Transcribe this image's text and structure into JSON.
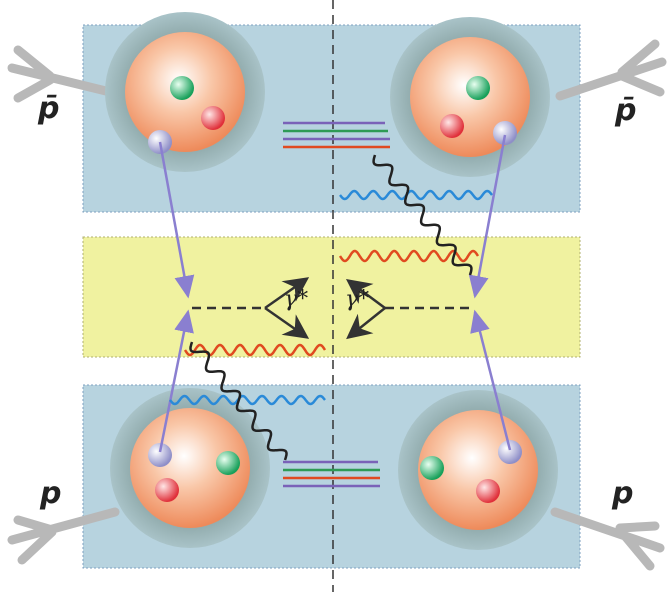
{
  "labels": {
    "top_left": "p̄",
    "top_right": "p̄",
    "bottom_left": "p",
    "bottom_right": "p",
    "photon_left": "γ*",
    "photon_right": "γ*"
  }
}
